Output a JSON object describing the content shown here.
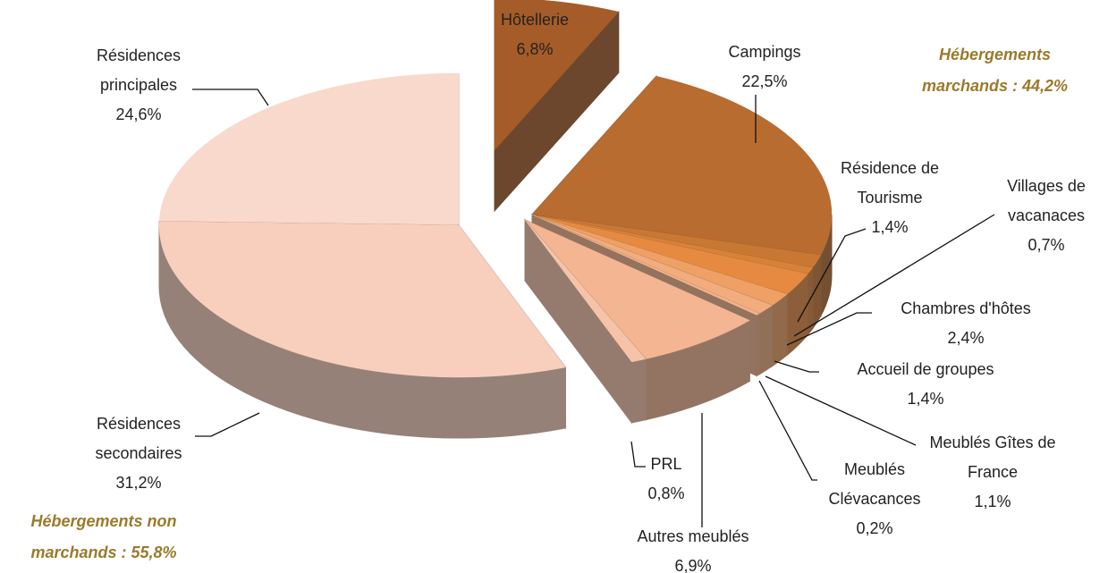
{
  "chart_data": {
    "type": "pie3d",
    "categories": [
      "Hôtellerie",
      "Campings",
      "Résidence de Tourisme",
      "Villages de vacanaces",
      "Chambres d'hôtes",
      "Accueil de groupes",
      "Meublés Gîtes de France",
      "Meublés Clévacances",
      "Autres meublés",
      "PRL",
      "Résidences secondaires",
      "Résidences principales"
    ],
    "values": [
      6.8,
      22.5,
      1.4,
      0.7,
      2.4,
      1.4,
      1.1,
      0.2,
      6.9,
      0.8,
      31.2,
      24.6
    ],
    "value_labels": [
      "6,8%",
      "22,5%",
      "1,4%",
      "0,7%",
      "2,4%",
      "1,4%",
      "1,1%",
      "0,2%",
      "6,9%",
      "0,8%",
      "31,2%",
      "24,6%"
    ],
    "colors": [
      "#a65c28",
      "#b86c30",
      "#c97834",
      "#d88238",
      "#e58a40",
      "#efa064",
      "#f2ac7e",
      "#f3b48a",
      "#f4b593",
      "#f6c3a8",
      "#f8cfbd",
      "#f8d9cc"
    ],
    "annotations": [
      "Hébergements marchands : 44,2%",
      "Hébergements non marchands : 55,8%"
    ]
  }
}
